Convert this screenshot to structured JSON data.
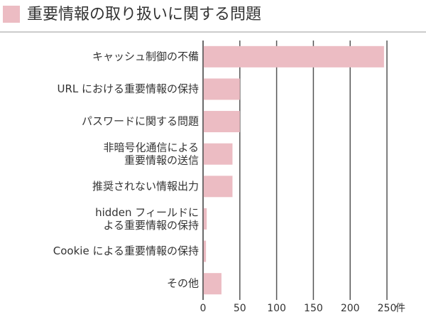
{
  "chart_data": {
    "type": "bar",
    "orientation": "horizontal",
    "title": "重要情報の取り扱いに関する問題",
    "categories": [
      "キャッシュ制御の不備",
      "URL における重要情報の保持",
      "パスワードに関する問題",
      "非暗号化通信による\n重要情報の送信",
      "推奨されない情報出力",
      "hidden フィールドに\nよる重要情報の保持",
      "Cookie による重要情報の保持",
      "その他"
    ],
    "values": [
      246,
      50,
      50,
      40,
      40,
      5,
      4,
      25
    ],
    "color": "#ecbcc3",
    "xlabel": "件",
    "xlim": [
      0,
      250
    ],
    "xticks": [
      0,
      50,
      100,
      150,
      200,
      250
    ],
    "grid": true
  }
}
